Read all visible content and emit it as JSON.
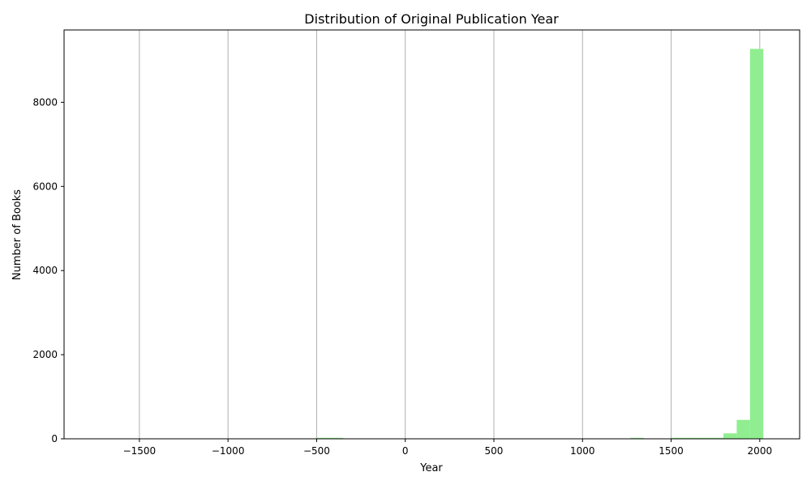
{
  "chart_data": {
    "type": "bar",
    "title": "Distribution of Original Publication Year",
    "xlabel": "Year",
    "ylabel": "Number of Books",
    "xlim": [
      -1925,
      2225
    ],
    "ylim": [
      0,
      9720
    ],
    "x_ticks": [
      -1500,
      -1000,
      -500,
      0,
      500,
      1000,
      1500,
      2000
    ],
    "x_tick_labels": [
      "−1500",
      "−1000",
      "−500",
      "0",
      "500",
      "1000",
      "1500",
      "2000"
    ],
    "y_ticks": [
      0,
      2000,
      4000,
      6000,
      8000
    ],
    "y_tick_labels": [
      "0",
      "2000",
      "4000",
      "6000",
      "8000"
    ],
    "grid": "vertical",
    "bin_width": 75,
    "bins": [
      {
        "x_start": -500,
        "x_end": -425,
        "count": 3
      },
      {
        "x_start": -425,
        "x_end": -350,
        "count": 5
      },
      {
        "x_start": 1270,
        "x_end": 1345,
        "count": 4
      },
      {
        "x_start": 1495,
        "x_end": 1570,
        "count": 6
      },
      {
        "x_start": 1570,
        "x_end": 1645,
        "count": 18
      },
      {
        "x_start": 1645,
        "x_end": 1720,
        "count": 8
      },
      {
        "x_start": 1720,
        "x_end": 1795,
        "count": 12
      },
      {
        "x_start": 1795,
        "x_end": 1870,
        "count": 130
      },
      {
        "x_start": 1870,
        "x_end": 1945,
        "count": 450
      },
      {
        "x_start": 1945,
        "x_end": 2020,
        "count": 9270
      }
    ],
    "bar_color": "#90ee90",
    "grid_color": "#b0b0b0"
  }
}
